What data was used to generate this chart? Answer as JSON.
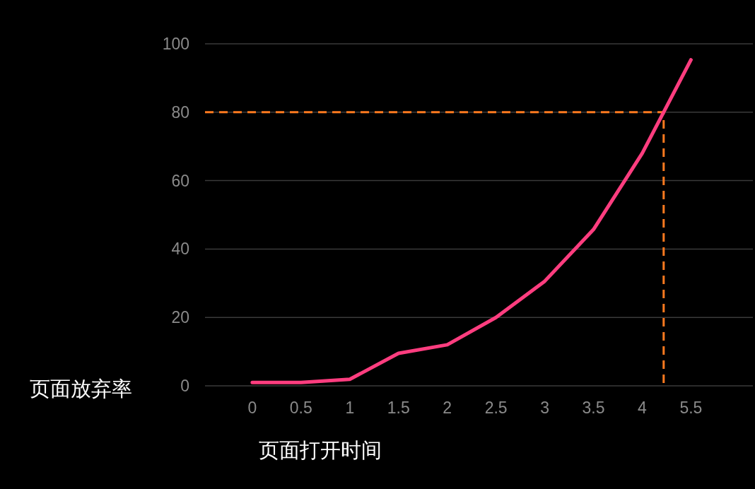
{
  "chart_data": {
    "type": "line",
    "xlabel": "页面打开时间",
    "ylabel": "页面放弃率",
    "categories": [
      "0",
      "0.5",
      "1",
      "1.5",
      "2",
      "2.5",
      "3",
      "3.5",
      "4",
      "5.5"
    ],
    "series": [
      {
        "color": "#ff3d7f",
        "values": [
          1.0,
          1.0,
          1.9,
          9.5,
          12,
          20,
          30.6,
          45.7,
          68,
          95.3
        ]
      }
    ],
    "ylim": [
      0,
      100
    ],
    "yticks": [
      0,
      20,
      40,
      60,
      80,
      100
    ],
    "grid": "y",
    "marker": "none",
    "line_style": "solid",
    "ref_lines": [
      {
        "axis": "y",
        "value": 80,
        "color": "#ff7a1f",
        "line_style": "dashed"
      }
    ]
  }
}
